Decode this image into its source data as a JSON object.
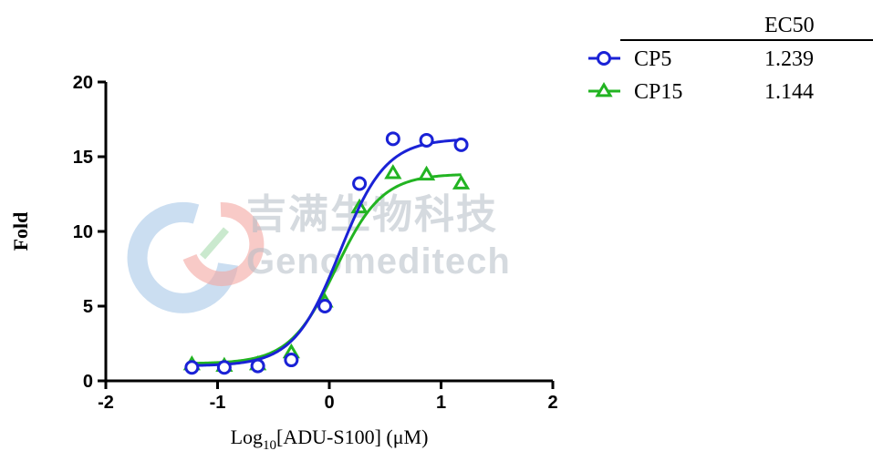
{
  "watermark": {
    "chinese_text": "吉满生物科技",
    "english_text": "Genomeditech"
  },
  "chart_data": {
    "type": "line",
    "title": "",
    "xlabel": "Log10[ADU-S100] (μM)",
    "xlabel_parts": {
      "prefix": "Log",
      "subscript": "10",
      "suffix": "[ADU-S100] (μM)"
    },
    "ylabel": "Fold",
    "xlim": [
      -2,
      2
    ],
    "ylim": [
      0,
      20
    ],
    "xticks": [
      -2,
      -1,
      0,
      1,
      2
    ],
    "yticks": [
      0,
      5,
      10,
      15,
      20
    ],
    "legend_placement": "top-right",
    "legend_header": "EC50",
    "grid": false,
    "series": [
      {
        "name": "CP5",
        "ec50": "1.239",
        "color": "#1a22d6",
        "marker": "circle",
        "x": [
          -1.23,
          -0.94,
          -0.64,
          -0.34,
          -0.04,
          0.27,
          0.57,
          0.87,
          1.18
        ],
        "y": [
          0.9,
          0.9,
          1.0,
          1.4,
          5.0,
          13.2,
          16.2,
          16.1,
          15.8
        ],
        "fit": {
          "bottom": 1.0,
          "top": 16.2,
          "log_ec50": 0.093,
          "hill": 2.1
        }
      },
      {
        "name": "CP15",
        "ec50": "1.144",
        "color": "#22b422",
        "marker": "triangle",
        "x": [
          -1.23,
          -0.94,
          -0.64,
          -0.34,
          -0.04,
          0.27,
          0.57,
          0.87,
          1.18
        ],
        "y": [
          1.1,
          1.0,
          1.1,
          1.9,
          5.3,
          11.6,
          13.9,
          13.8,
          13.2
        ],
        "fit": {
          "bottom": 1.15,
          "top": 13.85,
          "log_ec50": 0.058,
          "hill": 2.1
        }
      }
    ]
  }
}
